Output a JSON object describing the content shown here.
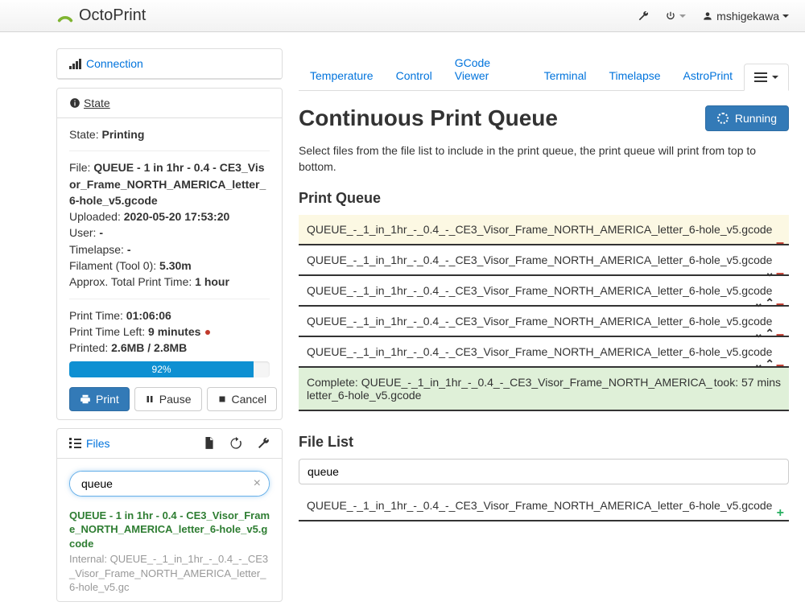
{
  "brand": "OctoPrint",
  "user": {
    "name": "mshigekawa"
  },
  "sidebar": {
    "connection_label": "Connection",
    "state_label": "State",
    "files_label": "Files"
  },
  "state": {
    "status_label": "State:",
    "status_value": "Printing",
    "file_label": "File:",
    "file_value": "QUEUE - 1 in 1hr - 0.4 - CE3_Visor_Frame_NORTH_AMERICA_letter_6-hole_v5.gcode",
    "uploaded_label": "Uploaded:",
    "uploaded_value": "2020-05-20 17:53:20",
    "user_label": "User:",
    "user_value": "-",
    "timelapse_label": "Timelapse:",
    "timelapse_value": "-",
    "filament_label": "Filament (Tool 0):",
    "filament_value": "5.30m",
    "approx_label": "Approx. Total Print Time:",
    "approx_value": "1 hour",
    "print_time_label": "Print Time:",
    "print_time_value": "01:06:06",
    "time_left_label": "Print Time Left:",
    "time_left_value": "9 minutes",
    "printed_label": "Printed:",
    "printed_value": "2.6MB / 2.8MB",
    "progress_pct": 92,
    "progress_text": "92%",
    "buttons": {
      "print": "Print",
      "pause": "Pause",
      "cancel": "Cancel"
    }
  },
  "files": {
    "search_value": "queue",
    "entry": {
      "title": "QUEUE - 1 in 1hr - 0.4 - CE3_Visor_Frame_NORTH_AMERICA_letter_6-hole_v5.gcode",
      "meta": "Internal: QUEUE_-_1_in_1hr_-_0.4_-_CE3_Visor_Frame_NORTH_AMERICA_letter_6-hole_v5.gc"
    }
  },
  "tabs": [
    "Temperature",
    "Control",
    "GCode Viewer",
    "Terminal",
    "Timelapse",
    "AstroPrint"
  ],
  "main": {
    "title": "Continuous Print Queue",
    "running_label": "Running",
    "helper": "Select files from the file list to include in the print queue, the print queue will print from top to bottom.",
    "pq_title": "Print Queue",
    "queue_item_name": "QUEUE_-_1_in_1hr_-_0.4_-_CE3_Visor_Frame_NORTH_AMERICA_letter_6-hole_v5.gcode",
    "complete_prefix": "Complete: ",
    "complete_name": "QUEUE_-_1_in_1hr_-_0.4_-_CE3_Visor_Frame_NORTH_AMERICA_letter_6-hole_v5.gcode",
    "took": "took: 57 mins",
    "fl_title": "File List",
    "fl_search": "queue",
    "fl_item": "QUEUE_-_1_in_1hr_-_0.4_-_CE3_Visor_Frame_NORTH_AMERICA_letter_6-hole_v5.gcode"
  },
  "colors": {
    "link": "#0073dc",
    "primary": "#337ab7",
    "queue_current_bg": "#fcf8e3",
    "queue_complete_bg": "#dff0d8"
  }
}
